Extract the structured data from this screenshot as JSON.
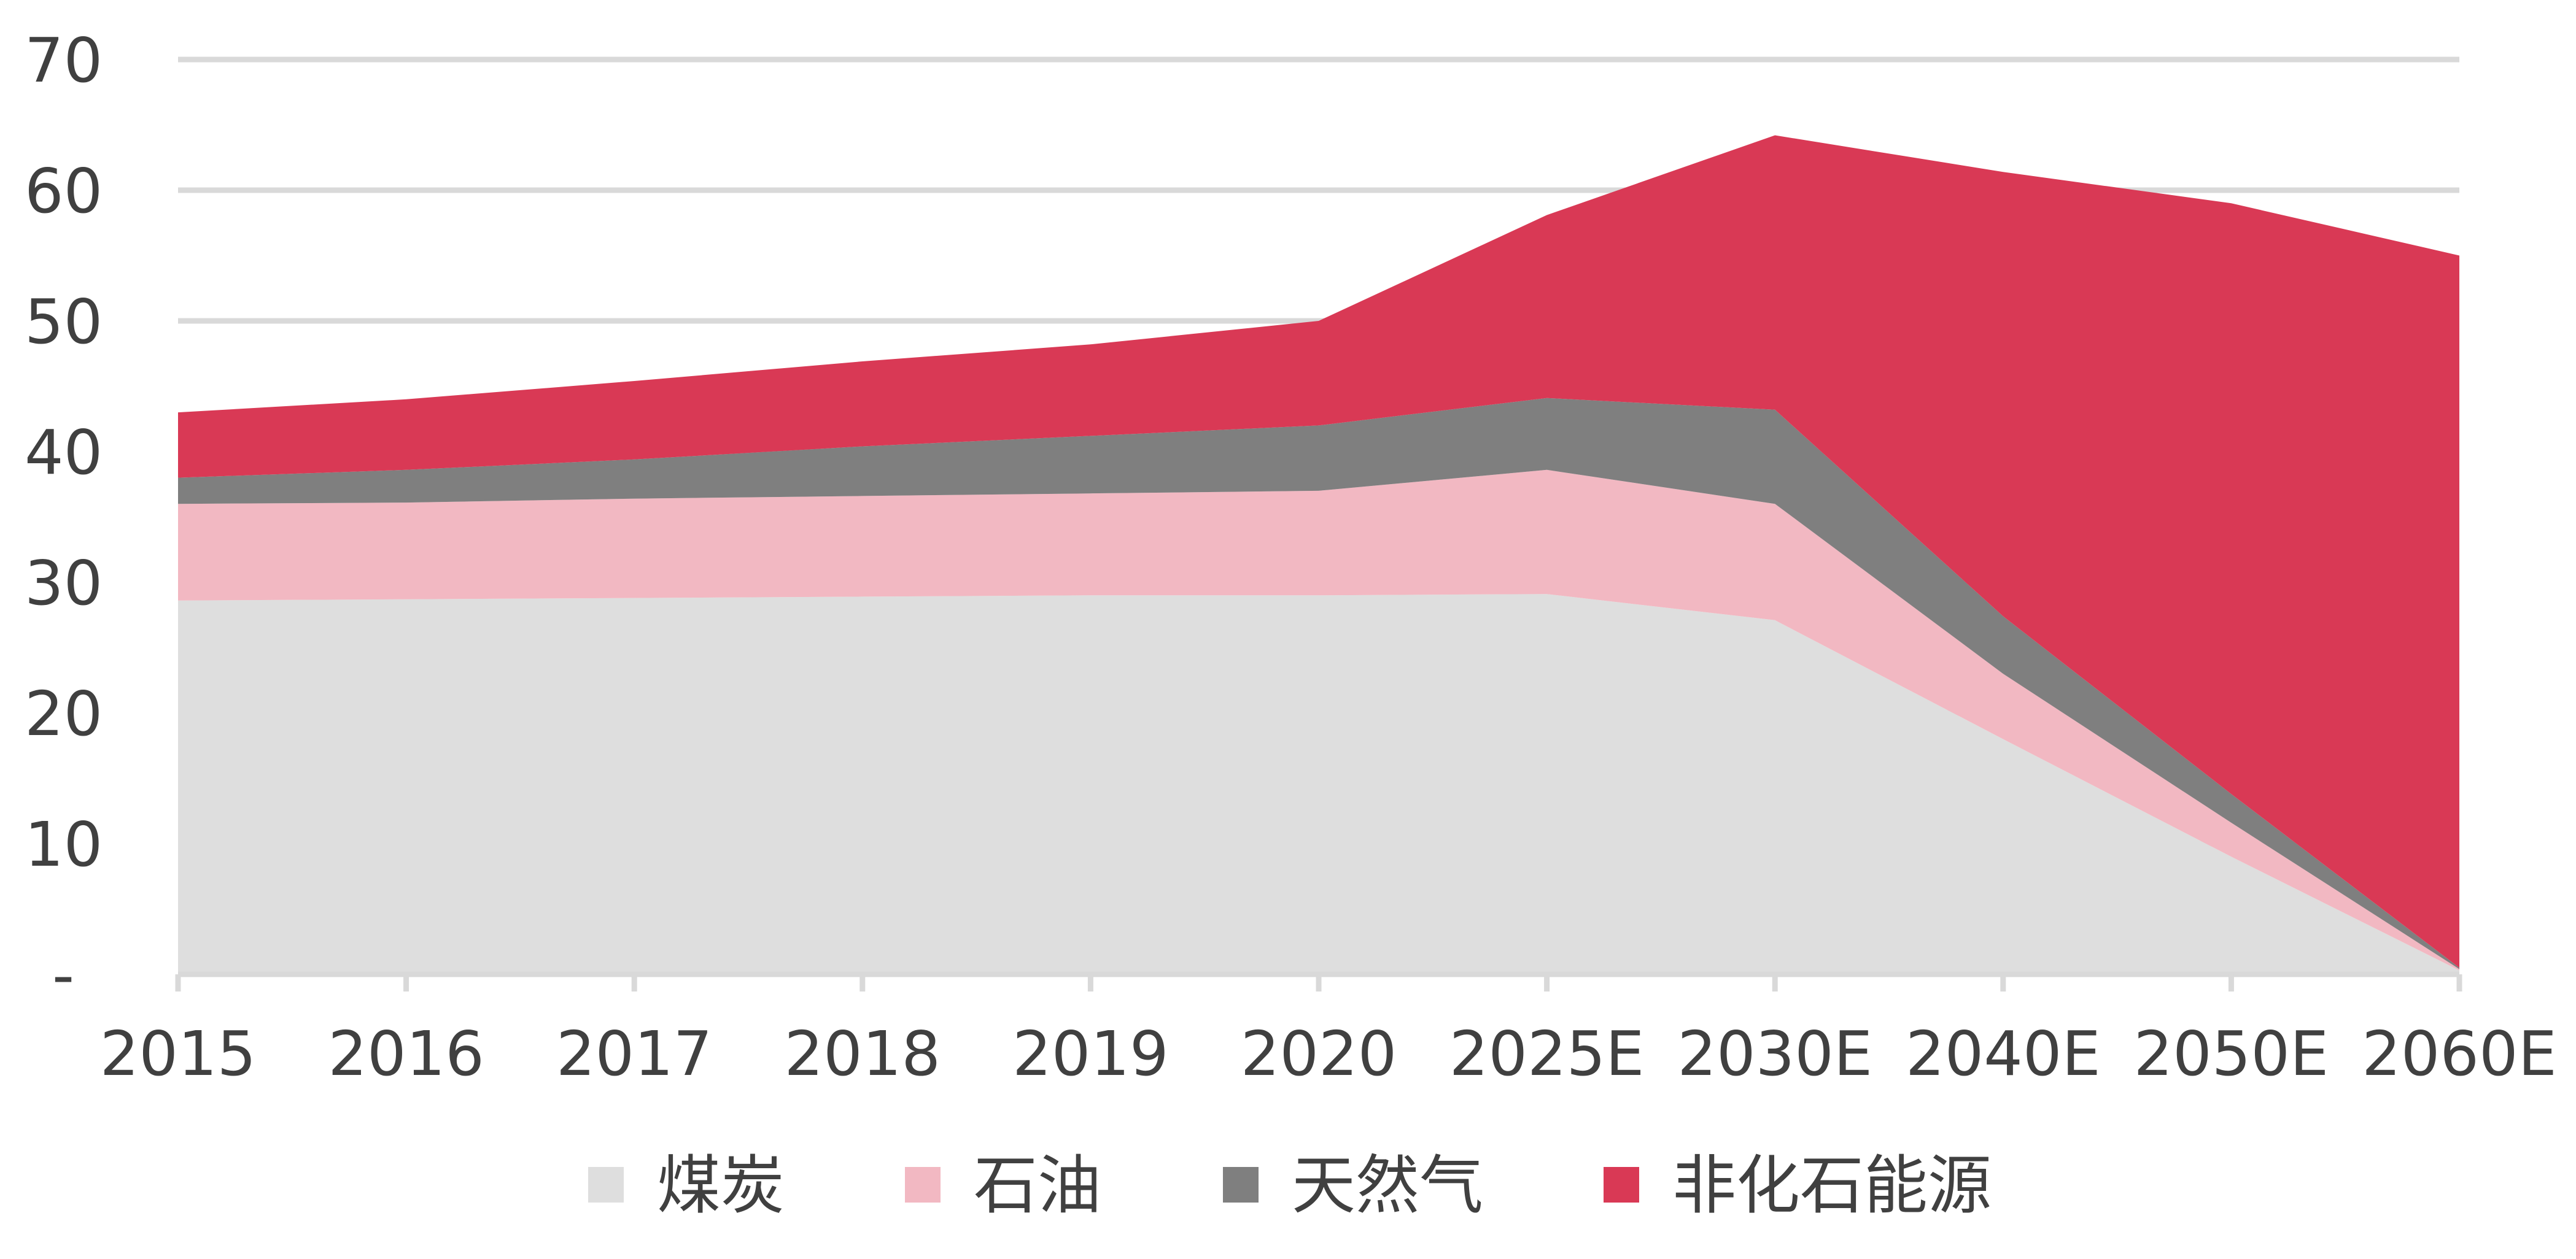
{
  "chart_data": {
    "type": "area",
    "stacked": true,
    "title": "",
    "xlabel": "",
    "ylabel": "",
    "categories": [
      "2015",
      "2016",
      "2017",
      "2018",
      "2019",
      "2020",
      "2025E",
      "2030E",
      "2040E",
      "2050E",
      "2060E"
    ],
    "y_ticks": [
      "-",
      "10",
      "20",
      "30",
      "40",
      "50",
      "60",
      "70"
    ],
    "ylim": [
      0,
      70
    ],
    "grid": true,
    "legend_position": "bottom",
    "series": [
      {
        "name": "煤炭",
        "color": "#dedede",
        "values": [
          28.6,
          28.7,
          28.8,
          28.9,
          29.0,
          29.0,
          29.1,
          27.1,
          18.0,
          9.0,
          0.3
        ]
      },
      {
        "name": "石油",
        "color": "#f2b8c2",
        "values": [
          7.4,
          7.4,
          7.6,
          7.7,
          7.8,
          8.0,
          9.5,
          8.9,
          5.0,
          2.6,
          0.1
        ]
      },
      {
        "name": "天然气",
        "color": "#7f7f7f",
        "values": [
          2.0,
          2.5,
          3.0,
          3.8,
          4.4,
          5.0,
          5.5,
          7.2,
          4.4,
          2.2,
          0.1
        ]
      },
      {
        "name": "非化石能源",
        "color": "#d93955",
        "values": [
          5.0,
          5.4,
          6.0,
          6.5,
          7.0,
          8.0,
          14.0,
          21.0,
          34.0,
          45.2,
          54.5
        ]
      }
    ]
  }
}
